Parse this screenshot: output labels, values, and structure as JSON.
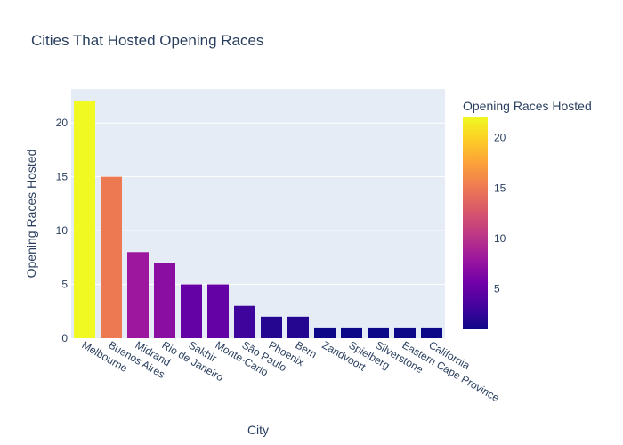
{
  "chart_data": {
    "type": "bar",
    "title": "Cities That Hosted Opening Races",
    "xlabel": "City",
    "ylabel": "Opening Races Hosted",
    "categories": [
      "Melbourne",
      "Buenos Aires",
      "Midrand",
      "Rio de Janeiro",
      "Sakhir",
      "Monte-Carlo",
      "São Paulo",
      "Phoenix",
      "Bern",
      "Zandvoort",
      "Spielberg",
      "Silverstone",
      "Eastern Cape Province",
      "California"
    ],
    "values": [
      22,
      15,
      8,
      7,
      5,
      5,
      3,
      2,
      2,
      1,
      1,
      1,
      1,
      1
    ],
    "ylim": [
      0,
      23.16
    ],
    "yticks": [
      0,
      5,
      10,
      15,
      20
    ],
    "grid": true,
    "plot_background": "#e5ecf6",
    "colorscale": "plasma",
    "colorbar": {
      "title": "Opening Races Hosted",
      "range": [
        1,
        22
      ],
      "ticks": [
        5,
        10,
        15,
        20
      ]
    }
  }
}
